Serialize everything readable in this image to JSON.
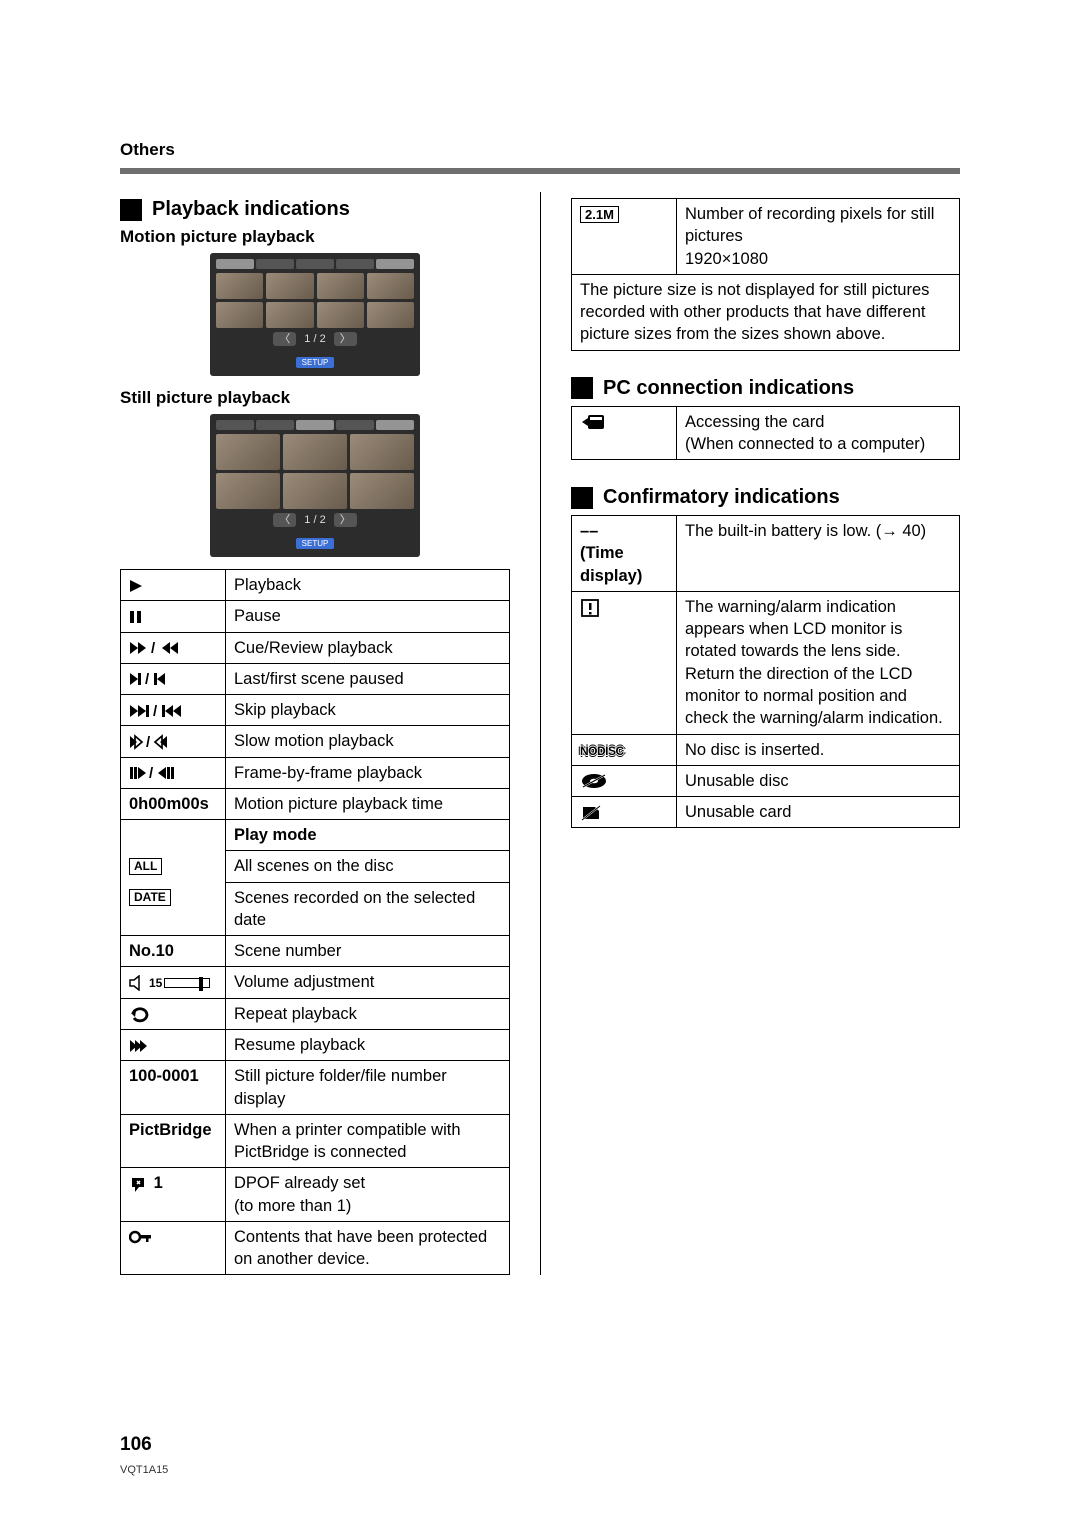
{
  "section": "Others",
  "playback": {
    "title": "Playback indications",
    "motion_label": "Motion picture playback",
    "still_label": "Still picture playback",
    "thumb_page": "1 / 2",
    "thumb_setup": "SETUP",
    "rows": [
      {
        "sym_svg": "play",
        "desc": "Playback"
      },
      {
        "sym_svg": "pause",
        "desc": "Pause"
      },
      {
        "sym_svg": "cue",
        "desc": "Cue/Review playback"
      },
      {
        "sym_svg": "lastfirst",
        "desc": "Last/first scene paused"
      },
      {
        "sym_svg": "skip",
        "desc": "Skip playback"
      },
      {
        "sym_svg": "slow",
        "desc": "Slow motion playback"
      },
      {
        "sym_svg": "frame",
        "desc": "Frame-by-frame playback"
      },
      {
        "sym_text": "0h00m00s",
        "desc": "Motion picture playback time"
      },
      {
        "sym_blank": true,
        "desc_bold": "Play mode"
      },
      {
        "sym_boxed": "ALL",
        "desc": "All scenes on the disc"
      },
      {
        "sym_boxed": "DATE",
        "desc": "Scenes recorded on the selected date"
      },
      {
        "sym_text": "No.10",
        "desc": "Scene number"
      },
      {
        "sym_svg": "volume",
        "desc": "Volume adjustment"
      },
      {
        "sym_svg": "repeat",
        "desc": "Repeat playback"
      },
      {
        "sym_svg": "resume",
        "desc": "Resume playback"
      },
      {
        "sym_text": "100-0001",
        "desc": "Still picture folder/file number display"
      },
      {
        "sym_text": "PictBridge",
        "desc": "When a printer compatible with PictBridge is connected"
      },
      {
        "sym_svg": "dpof",
        "sym_suffix": "1",
        "desc": "DPOF already set\n(to more than 1)"
      },
      {
        "sym_svg": "key",
        "desc": "Contents that have been protected on another device."
      }
    ]
  },
  "pixel_table": {
    "badge": "2.1M",
    "desc": "Number of recording pixels for still pictures\n1920×1080",
    "note": "The picture size is not displayed for still pictures recorded with other products that have different picture sizes from the sizes shown above."
  },
  "pc": {
    "title": "PC connection indications",
    "row": {
      "desc": "Accessing the card\n(When connected to a computer)"
    }
  },
  "confirm": {
    "title": "Confirmatory indications",
    "rows": [
      {
        "sym_html": "––\n(Time\ndisplay)",
        "desc": "The built-in battery is low. (→ 40)"
      },
      {
        "sym_svg": "warn",
        "desc": "The warning/alarm indication appears when LCD monitor is rotated towards the lens side. Return the direction of the LCD monitor to normal position and check the warning/alarm indication."
      },
      {
        "sym_svg": "nodisc",
        "desc": "No disc is inserted."
      },
      {
        "sym_svg": "baddisc",
        "desc": "Unusable disc"
      },
      {
        "sym_svg": "badcard",
        "desc": "Unusable card"
      }
    ]
  },
  "page_number": "106",
  "doc_id": "VQT1A15"
}
